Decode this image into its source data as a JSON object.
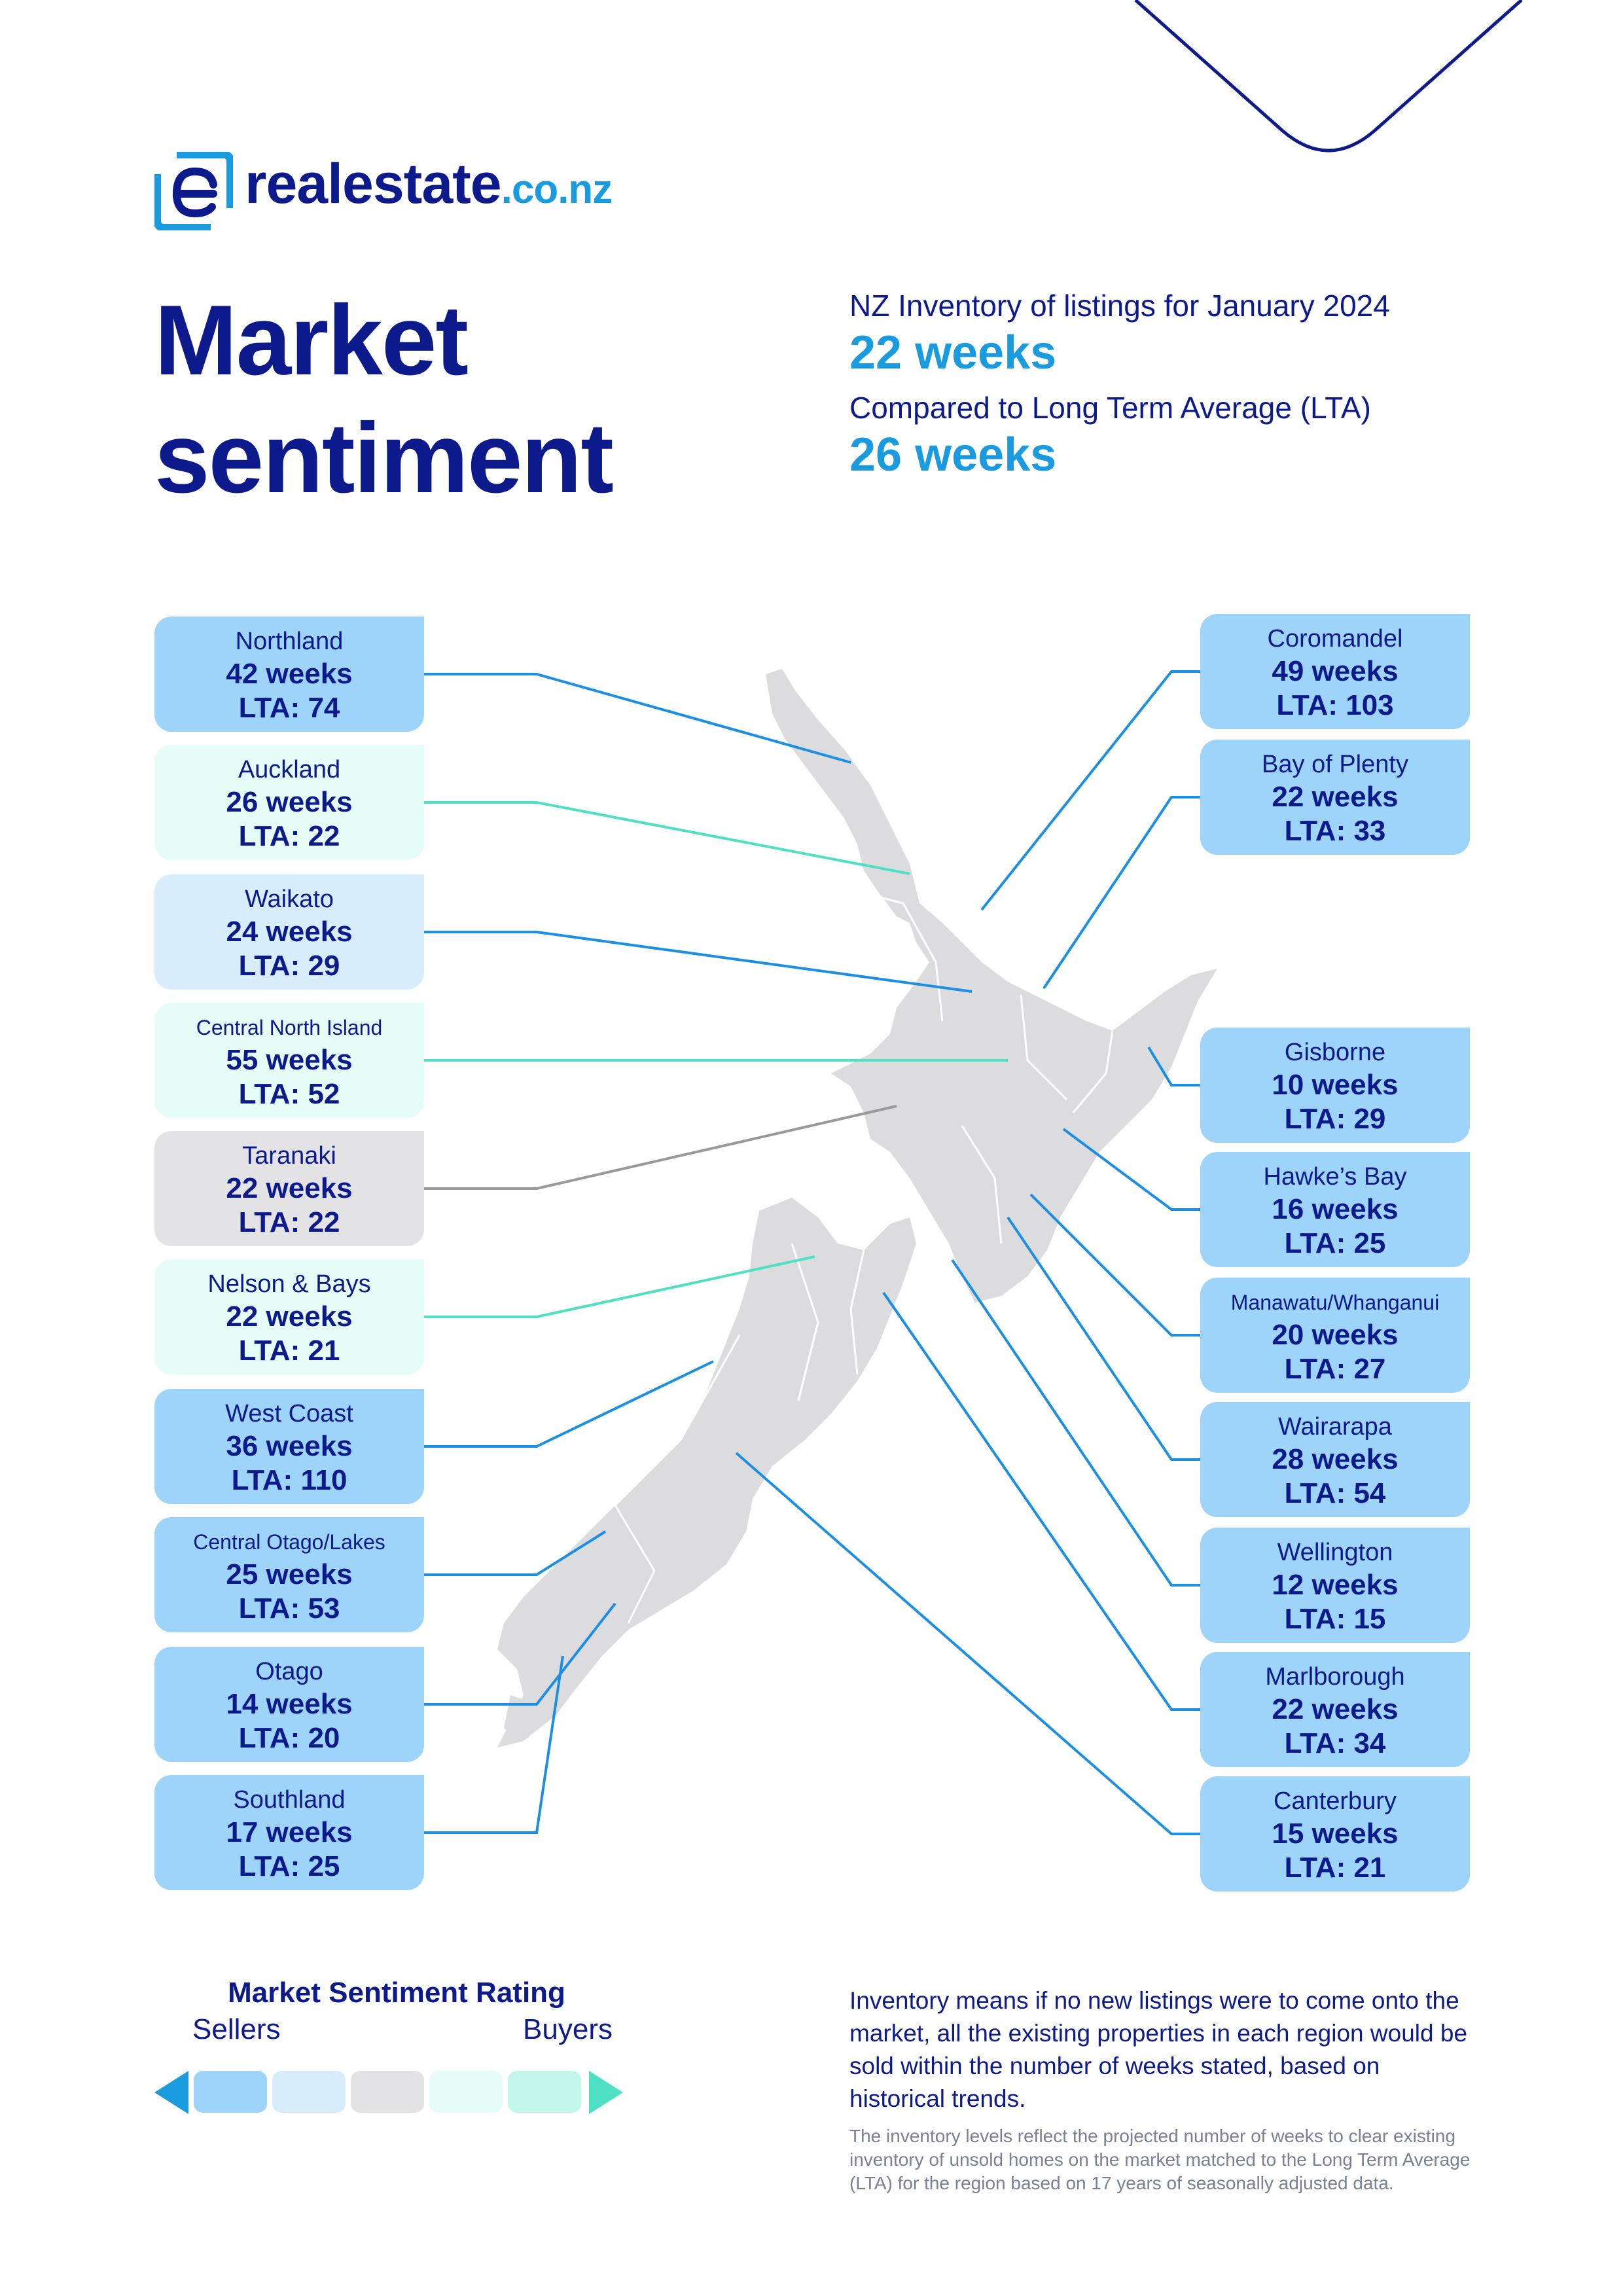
{
  "brand": {
    "name": "realestate",
    "tld": ".co.nz"
  },
  "title": {
    "line1": "Market",
    "line2": "sentiment"
  },
  "summary": {
    "inventory_label": "NZ Inventory of listings for January 2024",
    "inventory_value": "22 weeks",
    "lta_label": "Compared to Long Term Average (LTA)",
    "lta_value": "26 weeks"
  },
  "colors": {
    "navy": "#0d1a8c",
    "blue_accent": "#1a9be0",
    "sellers_strong": "#9ed4fa",
    "sellers": "#d8edfc",
    "neutral": "#e3e3e6",
    "buyers": "#e6fcf7",
    "buyers_strong": "#c2f7ea",
    "map_land": "#dcdcdf"
  },
  "regions_left": [
    {
      "name": "Northland",
      "weeks": "42 weeks",
      "lta": "LTA: 74",
      "rating": "sellers_strong"
    },
    {
      "name": "Auckland",
      "weeks": "26 weeks",
      "lta": "LTA: 22",
      "rating": "buyers"
    },
    {
      "name": "Waikato",
      "weeks": "24 weeks",
      "lta": "LTA: 29",
      "rating": "sellers"
    },
    {
      "name": "Central North Island",
      "weeks": "55 weeks",
      "lta": "LTA: 52",
      "rating": "buyers"
    },
    {
      "name": "Taranaki",
      "weeks": "22 weeks",
      "lta": "LTA: 22",
      "rating": "neutral"
    },
    {
      "name": "Nelson & Bays",
      "weeks": "22 weeks",
      "lta": "LTA: 21",
      "rating": "buyers"
    },
    {
      "name": "West Coast",
      "weeks": "36 weeks",
      "lta": "LTA: 110",
      "rating": "sellers_strong"
    },
    {
      "name": "Central Otago/Lakes",
      "weeks": "25 weeks",
      "lta": "LTA: 53",
      "rating": "sellers_strong"
    },
    {
      "name": "Otago",
      "weeks": "14 weeks",
      "lta": "LTA: 20",
      "rating": "sellers_strong"
    },
    {
      "name": "Southland",
      "weeks": "17 weeks",
      "lta": "LTA: 25",
      "rating": "sellers_strong"
    }
  ],
  "regions_right": [
    {
      "name": "Coromandel",
      "weeks": "49 weeks",
      "lta": "LTA: 103",
      "rating": "sellers_strong"
    },
    {
      "name": "Bay of Plenty",
      "weeks": "22 weeks",
      "lta": "LTA: 33",
      "rating": "sellers_strong"
    },
    {
      "name": "Gisborne",
      "weeks": "10 weeks",
      "lta": "LTA: 29",
      "rating": "sellers_strong"
    },
    {
      "name": "Hawke’s Bay",
      "weeks": "16 weeks",
      "lta": "LTA: 25",
      "rating": "sellers_strong"
    },
    {
      "name": "Manawatu/Whanganui",
      "weeks": "20 weeks",
      "lta": "LTA: 27",
      "rating": "sellers_strong"
    },
    {
      "name": "Wairarapa",
      "weeks": "28 weeks",
      "lta": "LTA: 54",
      "rating": "sellers_strong"
    },
    {
      "name": "Wellington",
      "weeks": "12 weeks",
      "lta": "LTA: 15",
      "rating": "sellers_strong"
    },
    {
      "name": "Marlborough",
      "weeks": "22 weeks",
      "lta": "LTA: 34",
      "rating": "sellers_strong"
    },
    {
      "name": "Canterbury",
      "weeks": "15 weeks",
      "lta": "LTA: 21",
      "rating": "sellers_strong"
    }
  ],
  "rating_legend": {
    "title": "Market Sentiment Rating",
    "left_label": "Sellers",
    "right_label": "Buyers",
    "left_arrow_icon": "triangle-left-icon",
    "right_arrow_icon": "triangle-right-icon"
  },
  "footnote": {
    "main": "Inventory means if no new listings were to come onto the market, all the existing properties in each region would be sold within the number of weeks stated, based on historical trends.",
    "small": "The inventory levels reflect the projected number of weeks to clear existing inventory of unsold homes on the market matched to the Long Term Average (LTA) for the region based on 17 years of seasonally adjusted data."
  }
}
